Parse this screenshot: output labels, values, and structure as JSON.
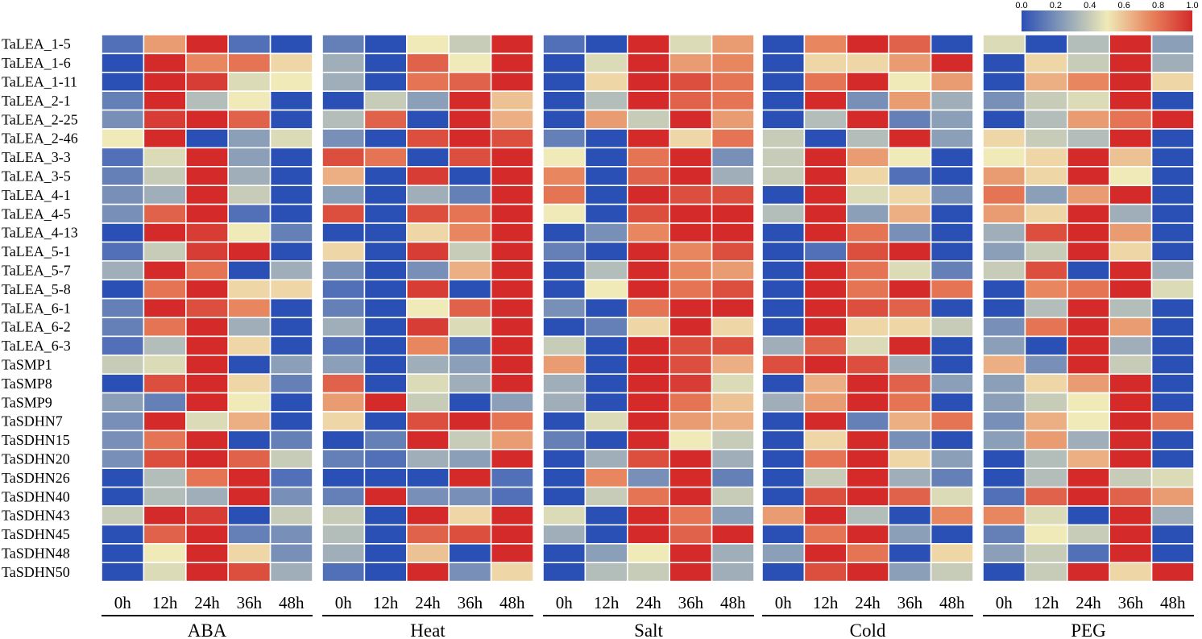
{
  "chart_data": {
    "type": "heatmap",
    "title": "",
    "genes": [
      "TaLEA_1-5",
      "TaLEA_1-6",
      "TaLEA_1-11",
      "TaLEA_2-1",
      "TaLEA_2-25",
      "TaLEA_2-46",
      "TaLEA_3-3",
      "TaLEA_3-5",
      "TaLEA_4-1",
      "TaLEA_4-5",
      "TaLEA_4-13",
      "TaLEA_5-1",
      "TaLEA_5-7",
      "TaLEA_5-8",
      "TaLEA_6-1",
      "TaLEA_6-2",
      "TaLEA_6-3",
      "TaSMP1",
      "TaSMP8",
      "TaSMP9",
      "TaSDHN7",
      "TaSDHN15",
      "TaSDHN20",
      "TaSDHN26",
      "TaSDHN40",
      "TaSDHN43",
      "TaSDHN45",
      "TaSDHN48",
      "TaSDHN50"
    ],
    "timepoints": [
      "0h",
      "12h",
      "24h",
      "36h",
      "48h"
    ],
    "treatments": [
      {
        "name": "ABA",
        "values": [
          [
            0.1,
            0.7,
            1.0,
            0.1,
            0.0
          ],
          [
            0.0,
            1.0,
            0.75,
            0.8,
            0.55
          ],
          [
            0.0,
            1.0,
            0.95,
            0.45,
            0.5
          ],
          [
            0.15,
            1.0,
            0.35,
            0.5,
            0.0
          ],
          [
            0.2,
            0.95,
            1.0,
            0.85,
            0.0
          ],
          [
            0.5,
            1.0,
            0.0,
            0.25,
            0.45
          ],
          [
            0.1,
            0.45,
            1.0,
            0.25,
            0.0
          ],
          [
            0.15,
            0.4,
            1.0,
            0.3,
            0.0
          ],
          [
            0.2,
            0.3,
            1.0,
            0.4,
            0.0
          ],
          [
            0.2,
            0.85,
            1.0,
            0.1,
            0.0
          ],
          [
            0.0,
            1.0,
            0.95,
            0.5,
            0.15
          ],
          [
            0.1,
            0.4,
            0.95,
            1.0,
            0.0
          ],
          [
            0.3,
            1.0,
            0.8,
            0.0,
            0.3
          ],
          [
            0.0,
            0.8,
            1.0,
            0.55,
            0.55
          ],
          [
            0.15,
            1.0,
            0.9,
            0.75,
            0.0
          ],
          [
            0.15,
            0.8,
            1.0,
            0.3,
            0.0
          ],
          [
            0.1,
            0.35,
            1.0,
            0.55,
            0.0
          ],
          [
            0.4,
            0.45,
            1.0,
            0.0,
            0.25
          ],
          [
            0.0,
            0.9,
            1.0,
            0.55,
            0.15
          ],
          [
            0.25,
            0.15,
            1.0,
            0.5,
            0.0
          ],
          [
            0.2,
            1.0,
            0.45,
            0.65,
            0.0
          ],
          [
            0.2,
            0.8,
            1.0,
            0.0,
            0.15
          ],
          [
            0.2,
            0.9,
            1.0,
            0.85,
            0.4
          ],
          [
            0.0,
            0.35,
            0.8,
            1.0,
            0.1
          ],
          [
            0.0,
            0.35,
            0.3,
            1.0,
            0.2
          ],
          [
            0.4,
            1.0,
            0.95,
            0.0,
            0.4
          ],
          [
            0.0,
            0.85,
            1.0,
            0.15,
            0.2
          ],
          [
            0.0,
            0.5,
            1.0,
            0.55,
            0.2
          ],
          [
            0.0,
            0.45,
            1.0,
            0.9,
            0.3
          ]
        ]
      },
      {
        "name": "Heat",
        "values": [
          [
            0.15,
            0.0,
            0.5,
            0.4,
            1.0
          ],
          [
            0.3,
            0.0,
            0.85,
            0.5,
            1.0
          ],
          [
            0.3,
            0.0,
            0.8,
            0.85,
            1.0
          ],
          [
            0.0,
            0.4,
            0.25,
            1.0,
            0.6
          ],
          [
            0.35,
            0.85,
            0.0,
            1.0,
            0.65
          ],
          [
            0.2,
            0.0,
            0.9,
            1.0,
            0.9
          ],
          [
            0.9,
            0.8,
            0.0,
            0.9,
            1.0
          ],
          [
            0.65,
            0.0,
            0.95,
            0.0,
            1.0
          ],
          [
            0.25,
            0.0,
            0.3,
            0.15,
            1.0
          ],
          [
            0.9,
            0.0,
            0.9,
            0.8,
            1.0
          ],
          [
            0.0,
            0.0,
            0.55,
            0.75,
            1.0
          ],
          [
            0.55,
            0.0,
            0.95,
            0.4,
            1.0
          ],
          [
            0.2,
            0.0,
            0.2,
            0.65,
            1.0
          ],
          [
            0.1,
            0.0,
            0.95,
            0.0,
            1.0
          ],
          [
            0.15,
            0.0,
            0.5,
            0.85,
            1.0
          ],
          [
            0.3,
            0.0,
            0.95,
            0.45,
            1.0
          ],
          [
            0.1,
            0.0,
            0.75,
            0.1,
            1.0
          ],
          [
            0.25,
            0.0,
            0.3,
            0.25,
            1.0
          ],
          [
            0.85,
            0.0,
            0.45,
            0.3,
            1.0
          ],
          [
            0.7,
            1.0,
            0.4,
            0.0,
            0.25
          ],
          [
            0.55,
            0.0,
            0.9,
            1.0,
            0.8
          ],
          [
            0.0,
            0.15,
            1.0,
            0.4,
            0.7
          ],
          [
            0.15,
            0.1,
            0.3,
            0.25,
            1.0
          ],
          [
            0.0,
            0.0,
            0.0,
            1.0,
            0.1
          ],
          [
            0.15,
            1.0,
            0.2,
            0.2,
            0.1
          ],
          [
            0.4,
            0.0,
            1.0,
            0.55,
            1.0
          ],
          [
            0.35,
            0.0,
            0.85,
            0.9,
            1.0
          ],
          [
            0.3,
            0.0,
            0.6,
            0.0,
            1.0
          ],
          [
            0.1,
            0.0,
            1.0,
            0.2,
            0.55
          ]
        ]
      },
      {
        "name": "Salt",
        "values": [
          [
            0.1,
            0.0,
            1.0,
            0.45,
            0.7
          ],
          [
            0.0,
            0.45,
            1.0,
            0.7,
            0.75
          ],
          [
            0.0,
            0.55,
            1.0,
            0.9,
            0.8
          ],
          [
            0.0,
            0.35,
            1.0,
            0.85,
            0.8
          ],
          [
            0.0,
            0.7,
            0.4,
            1.0,
            0.7
          ],
          [
            0.15,
            0.0,
            1.0,
            0.55,
            0.8
          ],
          [
            0.5,
            0.0,
            0.8,
            1.0,
            0.2
          ],
          [
            0.75,
            0.0,
            0.85,
            1.0,
            0.3
          ],
          [
            0.8,
            0.0,
            1.0,
            0.9,
            0.9
          ],
          [
            0.5,
            0.0,
            0.9,
            1.0,
            1.0
          ],
          [
            0.0,
            0.2,
            0.75,
            1.0,
            1.0
          ],
          [
            0.15,
            0.0,
            1.0,
            0.75,
            0.9
          ],
          [
            0.0,
            0.35,
            1.0,
            0.75,
            0.7
          ],
          [
            0.0,
            0.5,
            1.0,
            0.8,
            0.9
          ],
          [
            0.2,
            0.0,
            0.8,
            1.0,
            1.0
          ],
          [
            0.0,
            0.15,
            0.55,
            1.0,
            0.55
          ],
          [
            0.4,
            0.0,
            1.0,
            0.9,
            0.9
          ],
          [
            0.7,
            0.0,
            1.0,
            0.9,
            0.65
          ],
          [
            0.3,
            0.0,
            1.0,
            0.95,
            0.45
          ],
          [
            0.3,
            0.0,
            1.0,
            0.8,
            0.6
          ],
          [
            0.0,
            0.45,
            1.0,
            0.7,
            0.65
          ],
          [
            0.15,
            0.0,
            1.0,
            0.5,
            0.4
          ],
          [
            0.0,
            0.3,
            0.9,
            1.0,
            0.3
          ],
          [
            0.0,
            0.75,
            0.2,
            1.0,
            0.15
          ],
          [
            0.0,
            0.4,
            0.8,
            1.0,
            0.4
          ],
          [
            0.45,
            0.0,
            1.0,
            0.8,
            0.25
          ],
          [
            0.3,
            0.0,
            1.0,
            0.85,
            1.0
          ],
          [
            0.0,
            0.25,
            0.5,
            1.0,
            0.3
          ],
          [
            0.0,
            0.35,
            0.4,
            1.0,
            0.3
          ]
        ]
      },
      {
        "name": "Cold",
        "values": [
          [
            0.0,
            0.75,
            1.0,
            0.85,
            0.0
          ],
          [
            0.0,
            0.55,
            0.55,
            0.7,
            1.0
          ],
          [
            0.0,
            0.8,
            1.0,
            0.5,
            0.7
          ],
          [
            0.0,
            1.0,
            0.2,
            0.7,
            0.3
          ],
          [
            0.0,
            0.35,
            1.0,
            0.15,
            0.25
          ],
          [
            0.4,
            0.0,
            0.35,
            1.0,
            0.25
          ],
          [
            0.4,
            1.0,
            0.7,
            0.5,
            0.0
          ],
          [
            0.4,
            1.0,
            0.55,
            0.1,
            0.0
          ],
          [
            0.0,
            1.0,
            0.45,
            0.55,
            0.2
          ],
          [
            0.35,
            1.0,
            0.25,
            0.65,
            0.0
          ],
          [
            0.0,
            1.0,
            0.8,
            0.2,
            0.0
          ],
          [
            0.0,
            0.1,
            0.9,
            1.0,
            0.0
          ],
          [
            0.0,
            1.0,
            0.8,
            0.45,
            0.15
          ],
          [
            0.0,
            1.0,
            0.8,
            1.0,
            0.8
          ],
          [
            0.0,
            1.0,
            0.9,
            0.85,
            0.0
          ],
          [
            0.0,
            1.0,
            0.55,
            0.55,
            0.4
          ],
          [
            0.3,
            0.85,
            0.45,
            1.0,
            0.0
          ],
          [
            0.9,
            1.0,
            0.9,
            0.3,
            0.0
          ],
          [
            0.0,
            0.65,
            1.0,
            0.85,
            0.25
          ],
          [
            0.3,
            0.7,
            1.0,
            0.8,
            0.0
          ],
          [
            0.0,
            1.0,
            0.15,
            0.65,
            0.8
          ],
          [
            0.0,
            0.55,
            1.0,
            0.2,
            0.0
          ],
          [
            0.0,
            0.8,
            1.0,
            0.55,
            0.25
          ],
          [
            0.0,
            0.4,
            1.0,
            0.3,
            0.15
          ],
          [
            0.0,
            0.9,
            1.0,
            0.85,
            0.45
          ],
          [
            0.7,
            1.0,
            0.35,
            0.0,
            0.75
          ],
          [
            0.0,
            0.8,
            1.0,
            0.25,
            0.0
          ],
          [
            0.25,
            1.0,
            0.8,
            0.0,
            0.55
          ],
          [
            0.0,
            0.9,
            1.0,
            0.25,
            0.4
          ]
        ]
      },
      {
        "name": "PEG",
        "values": [
          [
            0.45,
            0.0,
            0.35,
            1.0,
            0.25
          ],
          [
            0.0,
            0.55,
            0.4,
            1.0,
            0.3
          ],
          [
            0.0,
            0.65,
            0.75,
            1.0,
            0.55
          ],
          [
            0.2,
            0.4,
            0.45,
            1.0,
            0.0
          ],
          [
            0.0,
            0.35,
            0.7,
            0.8,
            1.0
          ],
          [
            0.55,
            0.4,
            0.35,
            1.0,
            0.0
          ],
          [
            0.5,
            0.55,
            1.0,
            0.6,
            0.0
          ],
          [
            0.7,
            0.55,
            1.0,
            0.5,
            0.0
          ],
          [
            0.8,
            0.25,
            0.7,
            1.0,
            0.0
          ],
          [
            0.7,
            0.55,
            1.0,
            0.3,
            0.0
          ],
          [
            0.3,
            0.9,
            1.0,
            0.7,
            0.0
          ],
          [
            0.25,
            0.4,
            1.0,
            0.55,
            0.0
          ],
          [
            0.4,
            0.9,
            0.0,
            1.0,
            0.3
          ],
          [
            0.0,
            0.75,
            0.8,
            1.0,
            0.45
          ],
          [
            0.0,
            0.35,
            1.0,
            0.35,
            0.0
          ],
          [
            0.2,
            0.8,
            1.0,
            0.7,
            0.0
          ],
          [
            0.25,
            0.0,
            1.0,
            0.3,
            0.0
          ],
          [
            0.65,
            0.2,
            1.0,
            0.4,
            0.0
          ],
          [
            0.25,
            0.55,
            0.7,
            1.0,
            0.0
          ],
          [
            0.25,
            0.4,
            0.5,
            1.0,
            0.0
          ],
          [
            0.2,
            0.65,
            0.5,
            1.0,
            0.8
          ],
          [
            0.25,
            0.7,
            0.3,
            1.0,
            0.0
          ],
          [
            0.0,
            0.35,
            0.65,
            1.0,
            0.0
          ],
          [
            0.0,
            0.35,
            1.0,
            0.4,
            0.45
          ],
          [
            0.1,
            0.85,
            1.0,
            0.85,
            0.7
          ],
          [
            0.75,
            0.45,
            0.0,
            1.0,
            0.3
          ],
          [
            0.15,
            0.5,
            0.4,
            1.0,
            0.0
          ],
          [
            0.25,
            0.4,
            0.1,
            1.0,
            0.0
          ],
          [
            0.0,
            0.4,
            1.0,
            0.55,
            1.0
          ]
        ]
      }
    ],
    "colorbar": {
      "ticks": [
        "0.0",
        "0.2",
        "0.4",
        "0.6",
        "0.8",
        "1.0"
      ],
      "range": [
        0,
        1
      ],
      "colors": [
        "#2b50b5",
        "#8b9fb9",
        "#efeab8",
        "#e8875f",
        "#d42a2a"
      ]
    }
  }
}
